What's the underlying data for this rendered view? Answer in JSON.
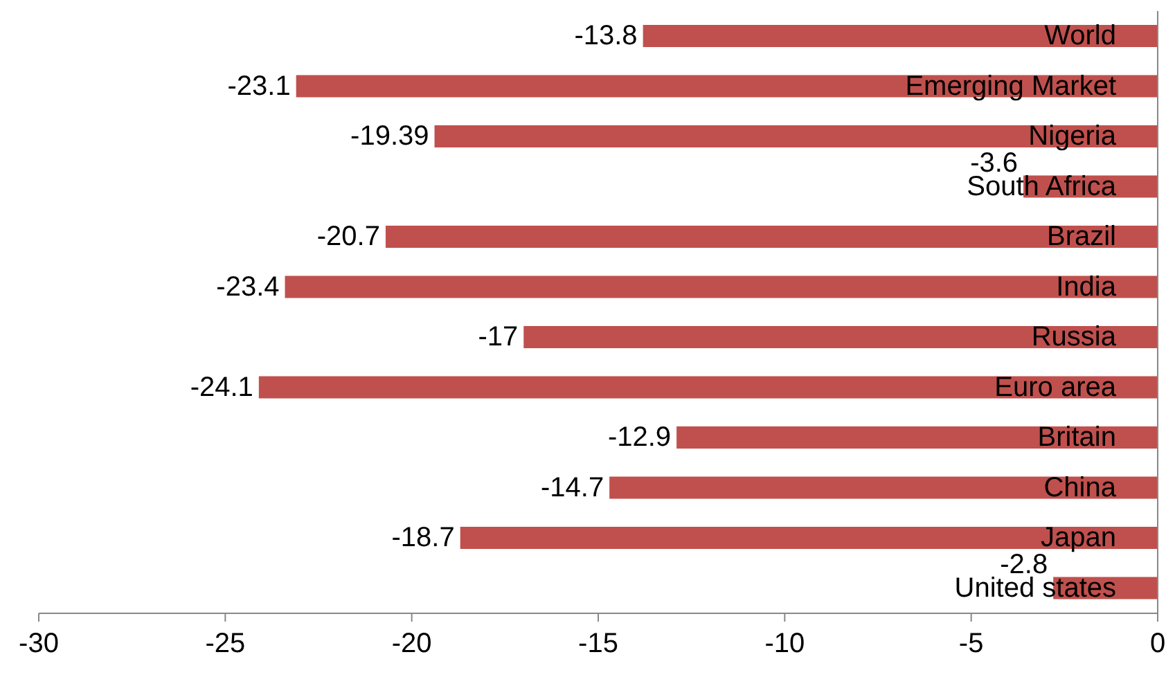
{
  "chart_data": {
    "type": "bar",
    "orientation": "horizontal",
    "categories": [
      "World",
      "Emerging Market",
      "Nigeria",
      "South Africa",
      "Brazil",
      "India",
      "Russia",
      "Euro area",
      "Britain",
      "China",
      "Japan",
      "United states"
    ],
    "values": [
      -13.8,
      -23.1,
      -19.39,
      -3.6,
      -20.7,
      -23.4,
      -17,
      -24.1,
      -12.9,
      -14.7,
      -18.7,
      -2.8
    ],
    "color": "#c0504d",
    "xlim": [
      -30,
      0
    ],
    "xticks": [
      -30,
      -25,
      -20,
      -15,
      -10,
      -5,
      0
    ],
    "data_labels": true,
    "grid": false,
    "legend": false
  }
}
